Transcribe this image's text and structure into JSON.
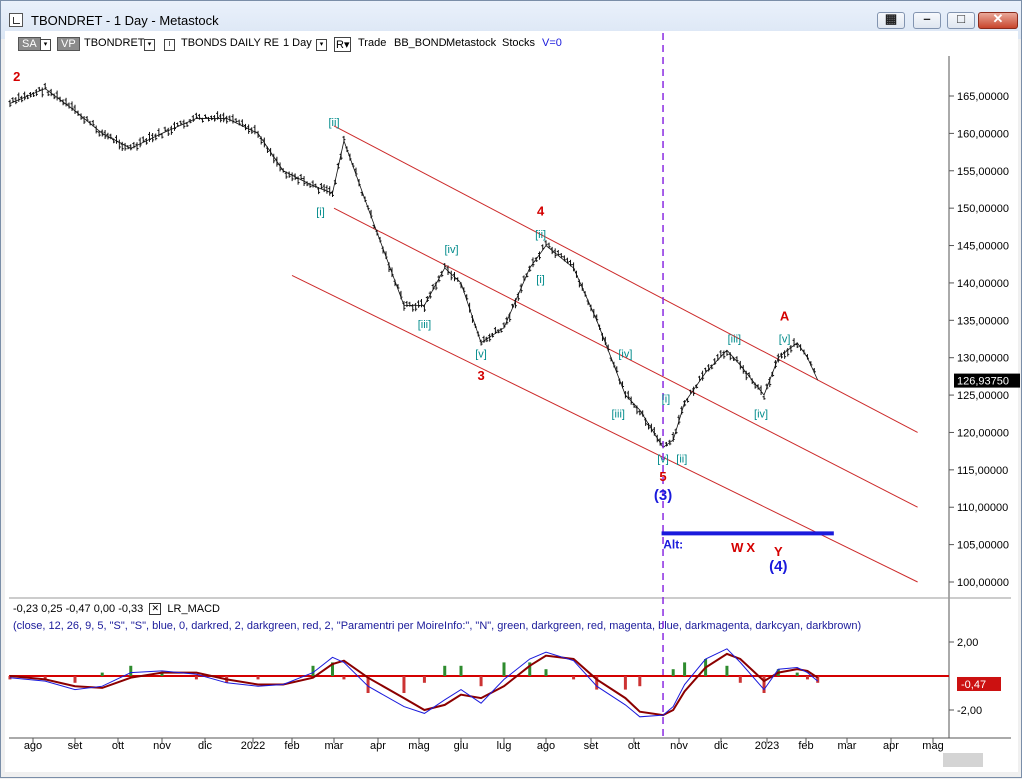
{
  "window": {
    "title": "TBONDRET - 1 Day - Metastock"
  },
  "toolbar": {
    "sa": "SA",
    "vp": "VP",
    "symbol": "TBONDRET",
    "security": "TBONDS DAILY RE",
    "period": "1 Day",
    "r_label": "R",
    "mode": "Trade",
    "set1": "BB_BOND",
    "set2": "Metastock",
    "set3": "Stocks",
    "version": "V=0"
  },
  "indicator": {
    "values": "-0,23  0,25  -0,47  0,00  -0,33",
    "name": "LR_MACD",
    "params": "(close,  12,  26,  9,  5,  \"S\",  \"S\",  blue,  0,  darkred,  2,  darkgreen,  red,  2,  \"Paramentri per MoireInfo:\",  \"N\",  green,  darkgreen,  red,  magenta,  blue,  darkmagenta,  darkcyan,  darkbrown)"
  },
  "chart_data": {
    "type": "line",
    "title": "",
    "xlabel": "",
    "ylabel": "",
    "x_ticks": [
      "ago",
      "set",
      "ott",
      "nov",
      "dic",
      "2022",
      "feb",
      "mar",
      "apr",
      "mag",
      "giu",
      "lug",
      "ago",
      "set",
      "ott",
      "nov",
      "dic",
      "2023",
      "feb",
      "mar",
      "apr",
      "mag"
    ],
    "y_ticks": [
      "165,00000",
      "160,00000",
      "155,00000",
      "150,00000",
      "145,00000",
      "140,00000",
      "135,00000",
      "130,00000",
      "125,00000",
      "120,00000",
      "115,00000",
      "110,00000",
      "105,00000",
      "100,00000"
    ],
    "ylim": [
      100,
      165
    ],
    "last_price_label": "126,93750",
    "series": [
      {
        "x": [
          "2021-07-15",
          "2021-08-10",
          "2021-09-01",
          "2021-09-20",
          "2021-10-10",
          "2021-11-01",
          "2021-11-25",
          "2021-12-15",
          "2022-01-05",
          "2022-01-25",
          "2022-02-15",
          "2022-02-28",
          "2022-03-08",
          "2022-03-25",
          "2022-04-20",
          "2022-05-05",
          "2022-05-20",
          "2022-06-01",
          "2022-06-15",
          "2022-07-01",
          "2022-07-20",
          "2022-08-01",
          "2022-08-20",
          "2022-09-05",
          "2022-09-25",
          "2022-10-05",
          "2022-10-21",
          "2022-10-28",
          "2022-11-05",
          "2022-11-20",
          "2022-12-05",
          "2022-12-14",
          "2022-12-30",
          "2023-01-10",
          "2023-01-25",
          "2023-02-02",
          "2023-02-09"
        ],
        "values": [
          164,
          166,
          163,
          160,
          158,
          160,
          162,
          162,
          160,
          155,
          153,
          152,
          159,
          150,
          137,
          137,
          142,
          140,
          132,
          134,
          142,
          145,
          142,
          135,
          125,
          123,
          118,
          119,
          124,
          128,
          131,
          129,
          125,
          130,
          132,
          130,
          127
        ]
      }
    ],
    "channel_lines": [
      {
        "from": {
          "x": "2022-03-01",
          "y": 161
        },
        "to": {
          "x": "2023-04-20",
          "y": 120
        }
      },
      {
        "from": {
          "x": "2022-03-01",
          "y": 150
        },
        "to": {
          "x": "2023-04-20",
          "y": 110
        }
      },
      {
        "from": {
          "x": "2022-02-01",
          "y": 141
        },
        "to": {
          "x": "2023-04-20",
          "y": 100
        }
      }
    ],
    "support_line": {
      "from": "2022-10-20",
      "to": "2023-02-20",
      "y": 106.5
    },
    "vertical_marker": "2022-10-21",
    "wave_labels": [
      {
        "text": "2",
        "x": "2021-07-20",
        "y": 167,
        "color": "#d40000",
        "size": "major"
      },
      {
        "text": "[ii]",
        "x": "2022-03-01",
        "y": 161,
        "color": "#008b8b",
        "size": "minor"
      },
      {
        "text": "[i]",
        "x": "2022-02-20",
        "y": 149,
        "color": "#008b8b",
        "size": "minor"
      },
      {
        "text": "[iv]",
        "x": "2022-05-25",
        "y": 144,
        "color": "#008b8b",
        "size": "minor"
      },
      {
        "text": "[iii]",
        "x": "2022-05-05",
        "y": 134,
        "color": "#008b8b",
        "size": "minor"
      },
      {
        "text": "[v]",
        "x": "2022-06-15",
        "y": 130,
        "color": "#008b8b",
        "size": "minor"
      },
      {
        "text": "3",
        "x": "2022-06-15",
        "y": 127,
        "color": "#d40000",
        "size": "major"
      },
      {
        "text": "4",
        "x": "2022-07-28",
        "y": 149,
        "color": "#d40000",
        "size": "major"
      },
      {
        "text": "[ii]",
        "x": "2022-07-28",
        "y": 146,
        "color": "#008b8b",
        "size": "minor"
      },
      {
        "text": "[i]",
        "x": "2022-07-28",
        "y": 140,
        "color": "#008b8b",
        "size": "minor"
      },
      {
        "text": "[iv]",
        "x": "2022-09-25",
        "y": 130,
        "color": "#008b8b",
        "size": "minor"
      },
      {
        "text": "[iii]",
        "x": "2022-09-20",
        "y": 122,
        "color": "#008b8b",
        "size": "minor"
      },
      {
        "text": "[i]",
        "x": "2022-10-23",
        "y": 124,
        "color": "#008b8b",
        "size": "minor"
      },
      {
        "text": "[v]",
        "x": "2022-10-21",
        "y": 116,
        "color": "#008b8b",
        "size": "minor"
      },
      {
        "text": "[ii]",
        "x": "2022-11-03",
        "y": 116,
        "color": "#008b8b",
        "size": "minor"
      },
      {
        "text": "5",
        "x": "2022-10-21",
        "y": 113.5,
        "color": "#d40000",
        "size": "major"
      },
      {
        "text": "(3)",
        "x": "2022-10-21",
        "y": 111,
        "color": "#1a1adc",
        "size": "big"
      },
      {
        "text": "[iii]",
        "x": "2022-12-10",
        "y": 132,
        "color": "#008b8b",
        "size": "minor"
      },
      {
        "text": "[iv]",
        "x": "2022-12-28",
        "y": 122,
        "color": "#008b8b",
        "size": "minor"
      },
      {
        "text": "A",
        "x": "2023-01-15",
        "y": 135,
        "color": "#d40000",
        "size": "major"
      },
      {
        "text": "[v]",
        "x": "2023-01-15",
        "y": 132,
        "color": "#008b8b",
        "size": "minor"
      },
      {
        "text": "Alt:",
        "x": "2022-10-28",
        "y": 104.5,
        "color": "#1a1adc",
        "size": "alt"
      },
      {
        "text": "W",
        "x": "2022-12-12",
        "y": 104,
        "color": "#d40000",
        "size": "major"
      },
      {
        "text": "X",
        "x": "2022-12-21",
        "y": 104,
        "color": "#d40000",
        "size": "major"
      },
      {
        "text": "Y",
        "x": "2023-01-10",
        "y": 103.5,
        "color": "#d40000",
        "size": "major"
      },
      {
        "text": "(4)",
        "x": "2023-01-10",
        "y": 101.5,
        "color": "#1a1adc",
        "size": "big"
      }
    ],
    "macd_panel": {
      "y_ticks": [
        "2,00",
        "-2,00"
      ],
      "ylim": [
        -2.6,
        2.6
      ],
      "last_value_label": "-0,47",
      "macd_line": [
        -0.1,
        -0.3,
        -0.8,
        -0.6,
        0.2,
        0.3,
        0.1,
        -0.4,
        -0.6,
        -0.5,
        0.2,
        1.1,
        0.8,
        -0.6,
        -1.8,
        -2.2,
        -1.4,
        -0.8,
        -1.6,
        -0.2,
        1.0,
        1.4,
        0.9,
        -0.6,
        -1.7,
        -2.4,
        -2.3,
        -1.8,
        -0.5,
        1.0,
        1.6,
        0.8,
        -0.8,
        0.4,
        0.5,
        0.2,
        -0.3
      ],
      "signal_line": [
        0.0,
        -0.2,
        -0.6,
        -0.7,
        -0.1,
        0.2,
        0.2,
        -0.2,
        -0.5,
        -0.5,
        -0.1,
        0.7,
        0.9,
        -0.1,
        -1.3,
        -2.0,
        -1.7,
        -1.1,
        -1.3,
        -0.6,
        0.6,
        1.2,
        1.0,
        -0.2,
        -1.3,
        -2.1,
        -2.3,
        -2.0,
        -0.9,
        0.5,
        1.3,
        1.0,
        -0.3,
        0.2,
        0.4,
        0.3,
        -0.1
      ]
    }
  }
}
